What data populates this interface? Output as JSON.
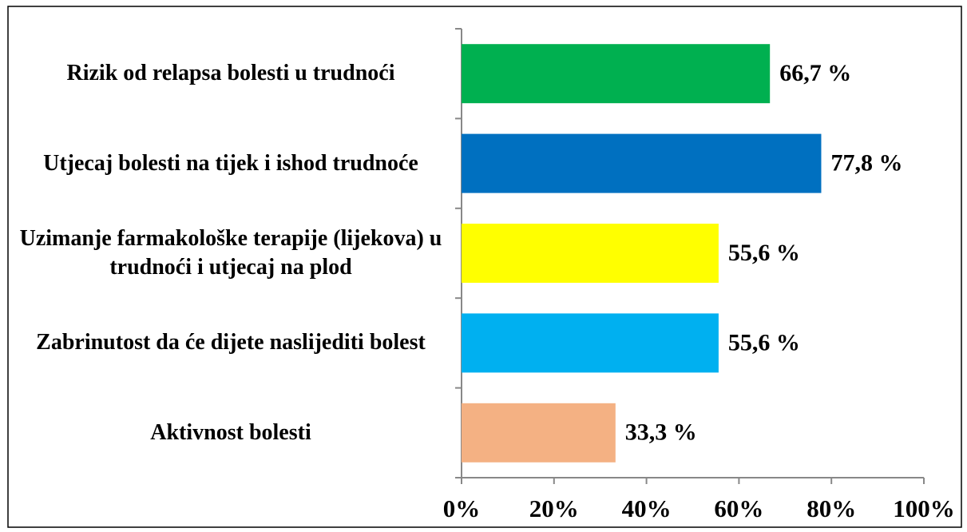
{
  "chart_data": {
    "type": "hbar",
    "categories": [
      "Rizik od relapsa bolesti u trudnoći",
      "Utjecaj bolesti na tijek i ishod trudnoće",
      "Uzimanje farmakološke terapije (lijekova) u trudnoći i utjecaj na plod",
      "Zabrinutost da će dijete naslijediti bolest",
      "Aktivnost bolesti"
    ],
    "values": [
      66.7,
      77.8,
      55.6,
      55.6,
      33.3
    ],
    "value_labels": [
      "66,7 %",
      "77,8 %",
      "55,6 %",
      "55,6 %",
      "33,3 %"
    ],
    "colors": [
      "#00b050",
      "#0070c0",
      "#ffff00",
      "#00b0f0",
      "#f4b183"
    ],
    "xlim": [
      0,
      100
    ],
    "xticks": [
      {
        "value": 0,
        "label": "0%"
      },
      {
        "value": 20,
        "label": "20%"
      },
      {
        "value": 40,
        "label": "40%"
      },
      {
        "value": 60,
        "label": "60%"
      },
      {
        "value": 80,
        "label": "80%"
      },
      {
        "value": 100,
        "label": "100%"
      }
    ]
  }
}
